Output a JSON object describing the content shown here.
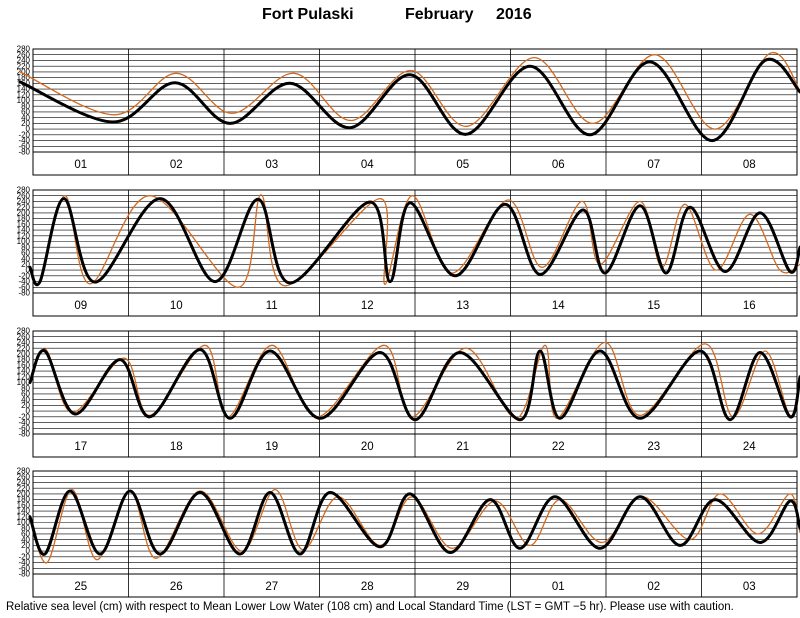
{
  "title": {
    "station": "Fort Pulaski",
    "month": "February",
    "year": "2016"
  },
  "footer": "Relative sea level (cm) with respect to Mean Lower Low Water (108 cm) and Local Standard Time (LST = GMT −5 hr). Please use with caution.",
  "colors": {
    "observed": "#000000",
    "predicted": "#d2691e",
    "grid": "#000000"
  },
  "chart_data": {
    "type": "line",
    "ylabel": "",
    "y_ticks": [
      280,
      260,
      240,
      220,
      200,
      180,
      160,
      140,
      120,
      100,
      80,
      60,
      40,
      20,
      0,
      -20,
      -40,
      -60,
      -80
    ],
    "ylim": [
      -80,
      280
    ],
    "series_info": [
      {
        "key": "observed",
        "color": "#000000",
        "width": 3
      },
      {
        "key": "predicted",
        "color": "#d2691e",
        "width": 1.3
      }
    ],
    "panels": [
      {
        "days": [
          "01",
          "02",
          "03",
          "04",
          "05",
          "06",
          "07",
          "08"
        ],
        "observed": [
          [
            20,
            165
          ],
          [
            113,
            25
          ],
          [
            175,
            162
          ],
          [
            230,
            20
          ],
          [
            290,
            160
          ],
          [
            350,
            5
          ],
          [
            410,
            190
          ],
          [
            466,
            -18
          ],
          [
            530,
            220
          ],
          [
            590,
            -20
          ],
          [
            650,
            235
          ],
          [
            712,
            -40
          ],
          [
            765,
            240
          ],
          [
            800,
            130
          ]
        ],
        "predicted": [
          [
            20,
            200
          ],
          [
            114,
            50
          ],
          [
            176,
            195
          ],
          [
            232,
            55
          ],
          [
            294,
            195
          ],
          [
            351,
            30
          ],
          [
            411,
            205
          ],
          [
            467,
            10
          ],
          [
            534,
            250
          ],
          [
            593,
            20
          ],
          [
            655,
            260
          ],
          [
            715,
            0
          ],
          [
            770,
            265
          ],
          [
            800,
            135
          ]
        ]
      },
      {
        "days": [
          "09",
          "10",
          "11",
          "12",
          "13",
          "14",
          "15",
          "16"
        ],
        "observed": [
          [
            30,
            10
          ],
          [
            40,
            -40
          ],
          [
            64,
            250
          ],
          [
            95,
            -42
          ],
          [
            160,
            250
          ],
          [
            215,
            -40
          ],
          [
            258,
            248
          ],
          [
            290,
            -45
          ],
          [
            370,
            238
          ],
          [
            390,
            -40
          ],
          [
            410,
            235
          ],
          [
            455,
            -20
          ],
          [
            505,
            230
          ],
          [
            540,
            -15
          ],
          [
            583,
            210
          ],
          [
            605,
            -10
          ],
          [
            640,
            225
          ],
          [
            666,
            -10
          ],
          [
            690,
            220
          ],
          [
            725,
            -5
          ],
          [
            760,
            200
          ],
          [
            790,
            -5
          ],
          [
            800,
            80
          ]
        ],
        "predicted": [
          [
            30,
            10
          ],
          [
            40,
            -40
          ],
          [
            65,
            260
          ],
          [
            90,
            -48
          ],
          [
            150,
            260
          ],
          [
            238,
            -60
          ],
          [
            261,
            263
          ],
          [
            285,
            -55
          ],
          [
            380,
            250
          ],
          [
            385,
            -50
          ],
          [
            412,
            260
          ],
          [
            452,
            -10
          ],
          [
            508,
            245
          ],
          [
            542,
            10
          ],
          [
            582,
            240
          ],
          [
            600,
            20
          ],
          [
            640,
            240
          ],
          [
            662,
            10
          ],
          [
            685,
            230
          ],
          [
            716,
            0
          ],
          [
            750,
            195
          ],
          [
            780,
            0
          ],
          [
            800,
            20
          ]
        ]
      },
      {
        "days": [
          "17",
          "18",
          "19",
          "20",
          "21",
          "22",
          "23",
          "24"
        ],
        "observed": [
          [
            30,
            100
          ],
          [
            45,
            210
          ],
          [
            75,
            -10
          ],
          [
            120,
            180
          ],
          [
            150,
            -20
          ],
          [
            200,
            215
          ],
          [
            230,
            -25
          ],
          [
            270,
            210
          ],
          [
            320,
            -25
          ],
          [
            380,
            205
          ],
          [
            415,
            -30
          ],
          [
            460,
            205
          ],
          [
            520,
            -30
          ],
          [
            540,
            210
          ],
          [
            560,
            -25
          ],
          [
            600,
            210
          ],
          [
            640,
            -25
          ],
          [
            700,
            210
          ],
          [
            730,
            -30
          ],
          [
            760,
            205
          ],
          [
            790,
            -20
          ],
          [
            800,
            120
          ]
        ],
        "predicted": [
          [
            30,
            100
          ],
          [
            46,
            215
          ],
          [
            72,
            -5
          ],
          [
            124,
            185
          ],
          [
            150,
            -15
          ],
          [
            205,
            230
          ],
          [
            228,
            -20
          ],
          [
            272,
            230
          ],
          [
            317,
            -20
          ],
          [
            384,
            230
          ],
          [
            412,
            -20
          ],
          [
            466,
            220
          ],
          [
            516,
            -25
          ],
          [
            545,
            230
          ],
          [
            557,
            -25
          ],
          [
            605,
            240
          ],
          [
            640,
            -15
          ],
          [
            705,
            235
          ],
          [
            733,
            -20
          ],
          [
            765,
            210
          ],
          [
            790,
            -15
          ],
          [
            800,
            120
          ]
        ]
      },
      {
        "days": [
          "25",
          "26",
          "27",
          "28",
          "29",
          "01",
          "02",
          "03"
        ],
        "observed": [
          [
            30,
            120
          ],
          [
            45,
            -10
          ],
          [
            70,
            210
          ],
          [
            100,
            -10
          ],
          [
            130,
            210
          ],
          [
            160,
            -10
          ],
          [
            200,
            205
          ],
          [
            240,
            -10
          ],
          [
            270,
            205
          ],
          [
            300,
            -10
          ],
          [
            330,
            205
          ],
          [
            380,
            15
          ],
          [
            410,
            200
          ],
          [
            450,
            -5
          ],
          [
            490,
            180
          ],
          [
            520,
            10
          ],
          [
            555,
            190
          ],
          [
            600,
            10
          ],
          [
            640,
            190
          ],
          [
            680,
            20
          ],
          [
            715,
            180
          ],
          [
            760,
            30
          ],
          [
            790,
            175
          ],
          [
            800,
            80
          ]
        ],
        "predicted": [
          [
            30,
            120
          ],
          [
            47,
            -40
          ],
          [
            72,
            215
          ],
          [
            97,
            -30
          ],
          [
            130,
            210
          ],
          [
            156,
            -25
          ],
          [
            200,
            210
          ],
          [
            242,
            0
          ],
          [
            275,
            215
          ],
          [
            303,
            5
          ],
          [
            338,
            190
          ],
          [
            380,
            20
          ],
          [
            412,
            190
          ],
          [
            452,
            10
          ],
          [
            495,
            175
          ],
          [
            530,
            20
          ],
          [
            560,
            180
          ],
          [
            602,
            30
          ],
          [
            642,
            190
          ],
          [
            690,
            40
          ],
          [
            720,
            200
          ],
          [
            758,
            60
          ],
          [
            790,
            200
          ],
          [
            800,
            65
          ]
        ]
      }
    ]
  }
}
